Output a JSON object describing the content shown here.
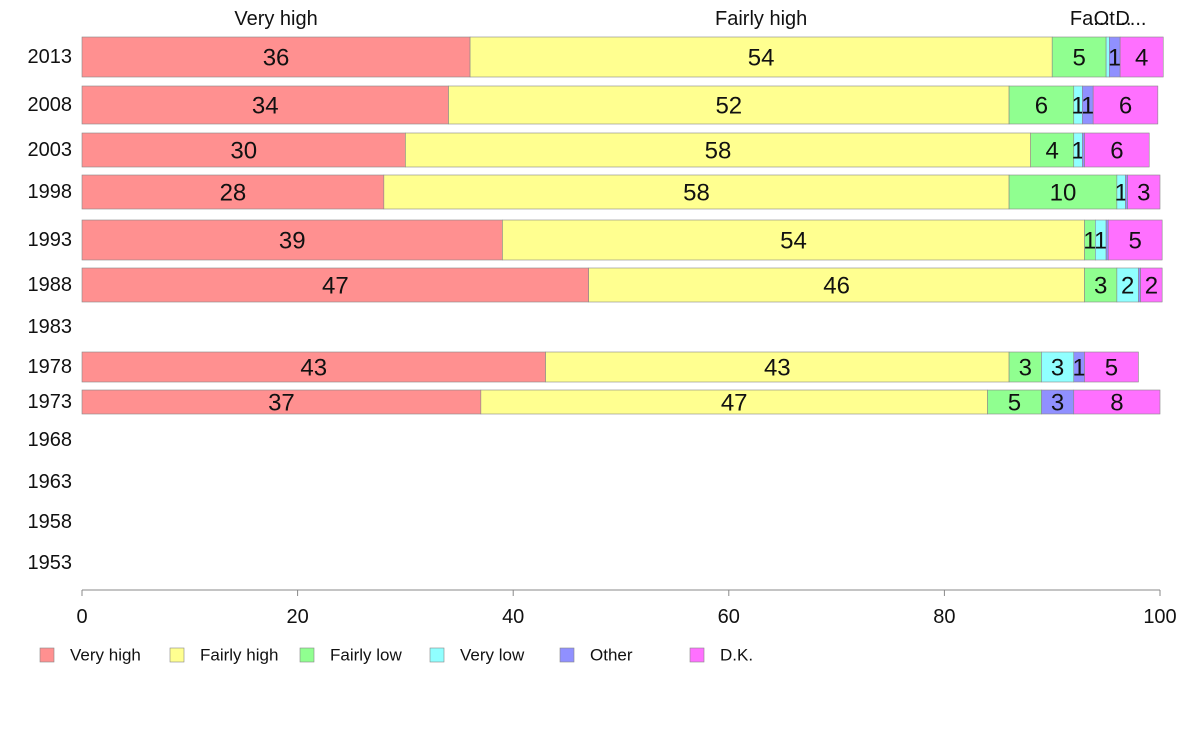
{
  "chart_data": {
    "type": "bar",
    "orientation": "horizontal",
    "stacked": true,
    "categories": [
      "2013",
      "2008",
      "2003",
      "1998",
      "1993",
      "1988",
      "1983",
      "1978",
      "1973",
      "1968",
      "1963",
      "1958",
      "1953"
    ],
    "series": [
      {
        "name": "Very high",
        "color": "#ff9090",
        "values": [
          36,
          34,
          30,
          28,
          39,
          47,
          null,
          43,
          37,
          null,
          null,
          null,
          null
        ]
      },
      {
        "name": "Fairly high",
        "color": "#ffff90",
        "values": [
          54,
          52,
          58,
          58,
          54,
          46,
          null,
          43,
          47,
          null,
          null,
          null,
          null
        ]
      },
      {
        "name": "Fairly low",
        "color": "#90ff90",
        "values": [
          5,
          6,
          4,
          10,
          1,
          3,
          null,
          3,
          5,
          null,
          null,
          null,
          null
        ]
      },
      {
        "name": "Very low",
        "color": "#90ffff",
        "values": [
          0.3,
          0.8,
          0.8,
          0.8,
          1,
          2,
          null,
          3,
          0,
          null,
          null,
          null,
          null
        ]
      },
      {
        "name": "Other",
        "color": "#9090ff",
        "values": [
          1,
          1,
          0.2,
          0.2,
          0.2,
          0.2,
          null,
          1,
          3,
          null,
          null,
          null,
          null
        ]
      },
      {
        "name": "D.K.",
        "color": "#ff70ff",
        "values": [
          4,
          6,
          6,
          3,
          5,
          2,
          null,
          5,
          8,
          null,
          null,
          null,
          null
        ]
      }
    ],
    "segment_labels": [
      [
        "36",
        "54",
        "5",
        "",
        "1",
        "4"
      ],
      [
        "34",
        "52",
        "6",
        "1",
        "1",
        "6"
      ],
      [
        "30",
        "58",
        "4",
        "1",
        "",
        "6"
      ],
      [
        "28",
        "58",
        "10",
        "1",
        "",
        "3"
      ],
      [
        "39",
        "54",
        "1",
        "1",
        "",
        "5"
      ],
      [
        "47",
        "46",
        "3",
        "2",
        "",
        "2"
      ],
      [
        "",
        "",
        "",
        "",
        "",
        ""
      ],
      [
        "43",
        "43",
        "3",
        "3",
        "1",
        "5"
      ],
      [
        "37",
        "47",
        "5",
        "",
        "3",
        "8"
      ],
      [
        "",
        "",
        "",
        "",
        "",
        ""
      ],
      [
        "",
        "",
        "",
        "",
        "",
        ""
      ],
      [
        "",
        "",
        "",
        "",
        "",
        ""
      ],
      [
        "",
        "",
        "",
        "",
        "",
        ""
      ]
    ],
    "column_headers": [
      {
        "text": "Very high",
        "x": 18
      },
      {
        "text": "Fairly high",
        "x": 63
      },
      {
        "text": "Fa...",
        "x": 93.5
      },
      {
        "text": "Ot...",
        "x": 95.6
      },
      {
        "text": "D...",
        "x": 97.3
      }
    ],
    "xlim": [
      0,
      100
    ],
    "xticks": [
      0,
      20,
      40,
      60,
      80,
      100
    ],
    "title": "",
    "xlabel": "",
    "ylabel": "",
    "grid": false,
    "legend_position": "bottom-left"
  }
}
